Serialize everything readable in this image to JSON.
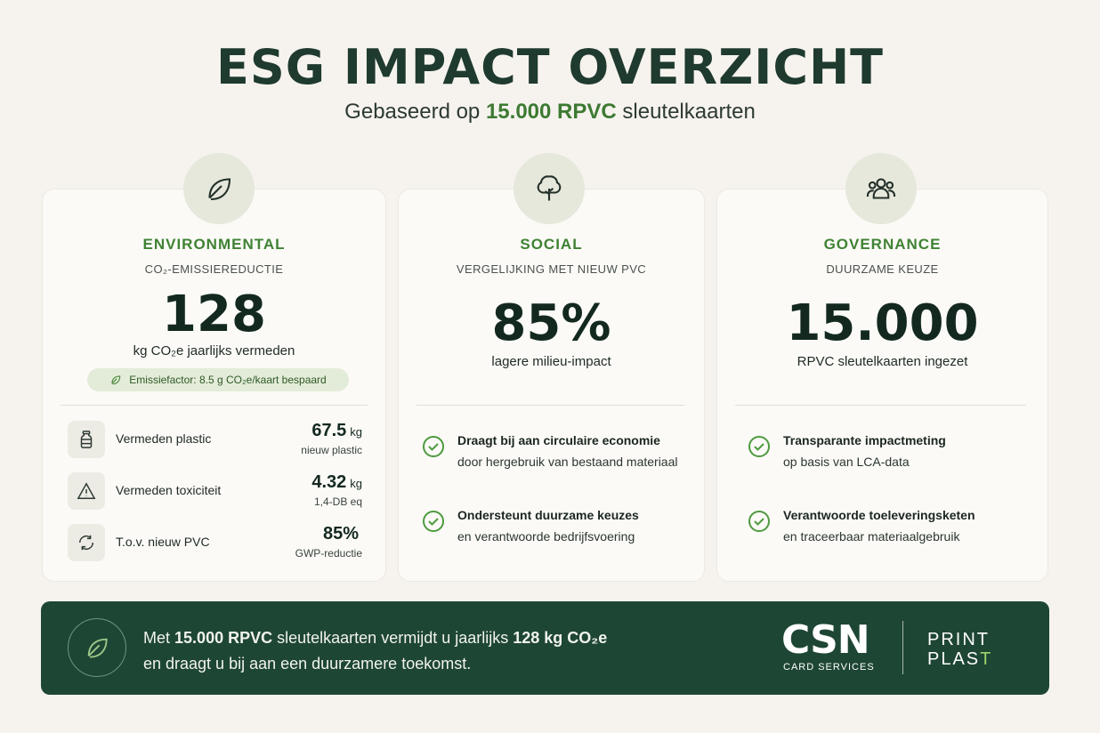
{
  "header": {
    "title": "ESG IMPACT OVERZICHT",
    "subtitle_pre": "Gebaseerd op",
    "subtitle_highlight": "15.000 RPVC",
    "subtitle_post": "sleutelkaarten"
  },
  "environmental": {
    "icon": "leaf-icon",
    "heading": "ENVIRONMENTAL",
    "sublabel": "CO₂-EMISSIEREDUCTIE",
    "big_number": "128",
    "caption": "kg CO₂e jaarlijks vermeden",
    "pill": "Emissiefactor: 8.5 g CO₂e/kaart bespaard",
    "stats": [
      {
        "icon": "bottle-icon",
        "label": "Vermeden plastic",
        "value": "67.5",
        "unit": "kg",
        "sub": "nieuw plastic"
      },
      {
        "icon": "warning-icon",
        "label": "Vermeden toxiciteit",
        "value": "4.32",
        "unit": "kg",
        "sub": "1,4-DB eq"
      },
      {
        "icon": "recycle-icon",
        "label": "T.o.v. nieuw PVC",
        "value": "85%",
        "unit": "",
        "sub": "GWP-reductie"
      }
    ]
  },
  "social": {
    "icon": "tree-icon",
    "heading": "SOCIAL",
    "sublabel": "VERGELIJKING MET NIEUW PVC",
    "big_number": "85%",
    "caption": "lagere milieu-impact",
    "points": [
      {
        "bold": "Draagt bij aan circulaire economie",
        "text": "door hergebruik van bestaand materiaal"
      },
      {
        "bold": "Ondersteunt duurzame keuzes",
        "text": "en verantwoorde bedrijfsvoering"
      }
    ]
  },
  "governance": {
    "icon": "people-icon",
    "heading": "GOVERNANCE",
    "sublabel": "DUURZAME KEUZE",
    "big_number": "15.000",
    "caption": "RPVC sleutelkaarten ingezet",
    "points": [
      {
        "bold": "Transparante impactmeting",
        "text": "op basis van LCA-data"
      },
      {
        "bold": "Verantwoorde toeleveringsketen",
        "text": "en traceerbaar materiaalgebruik"
      }
    ]
  },
  "banner": {
    "icon": "leaf-icon",
    "l1_a": "Met",
    "l1_b": "15.000 RPVC",
    "l1_c": "sleutelkaarten vermijdt u jaarlijks",
    "l1_d": "128 kg CO₂e",
    "line2": "en draagt u bij aan een duurzamere toekomst.",
    "logo_main": "CSN",
    "logo_sub": "CARD SERVICES",
    "brand_1": "PRINT",
    "brand_2a": "PLAS",
    "brand_2b": "T"
  },
  "colors": {
    "accent_green": "#3f8233",
    "banner_bg": "#1e4634",
    "background": "#f6f3ee"
  }
}
